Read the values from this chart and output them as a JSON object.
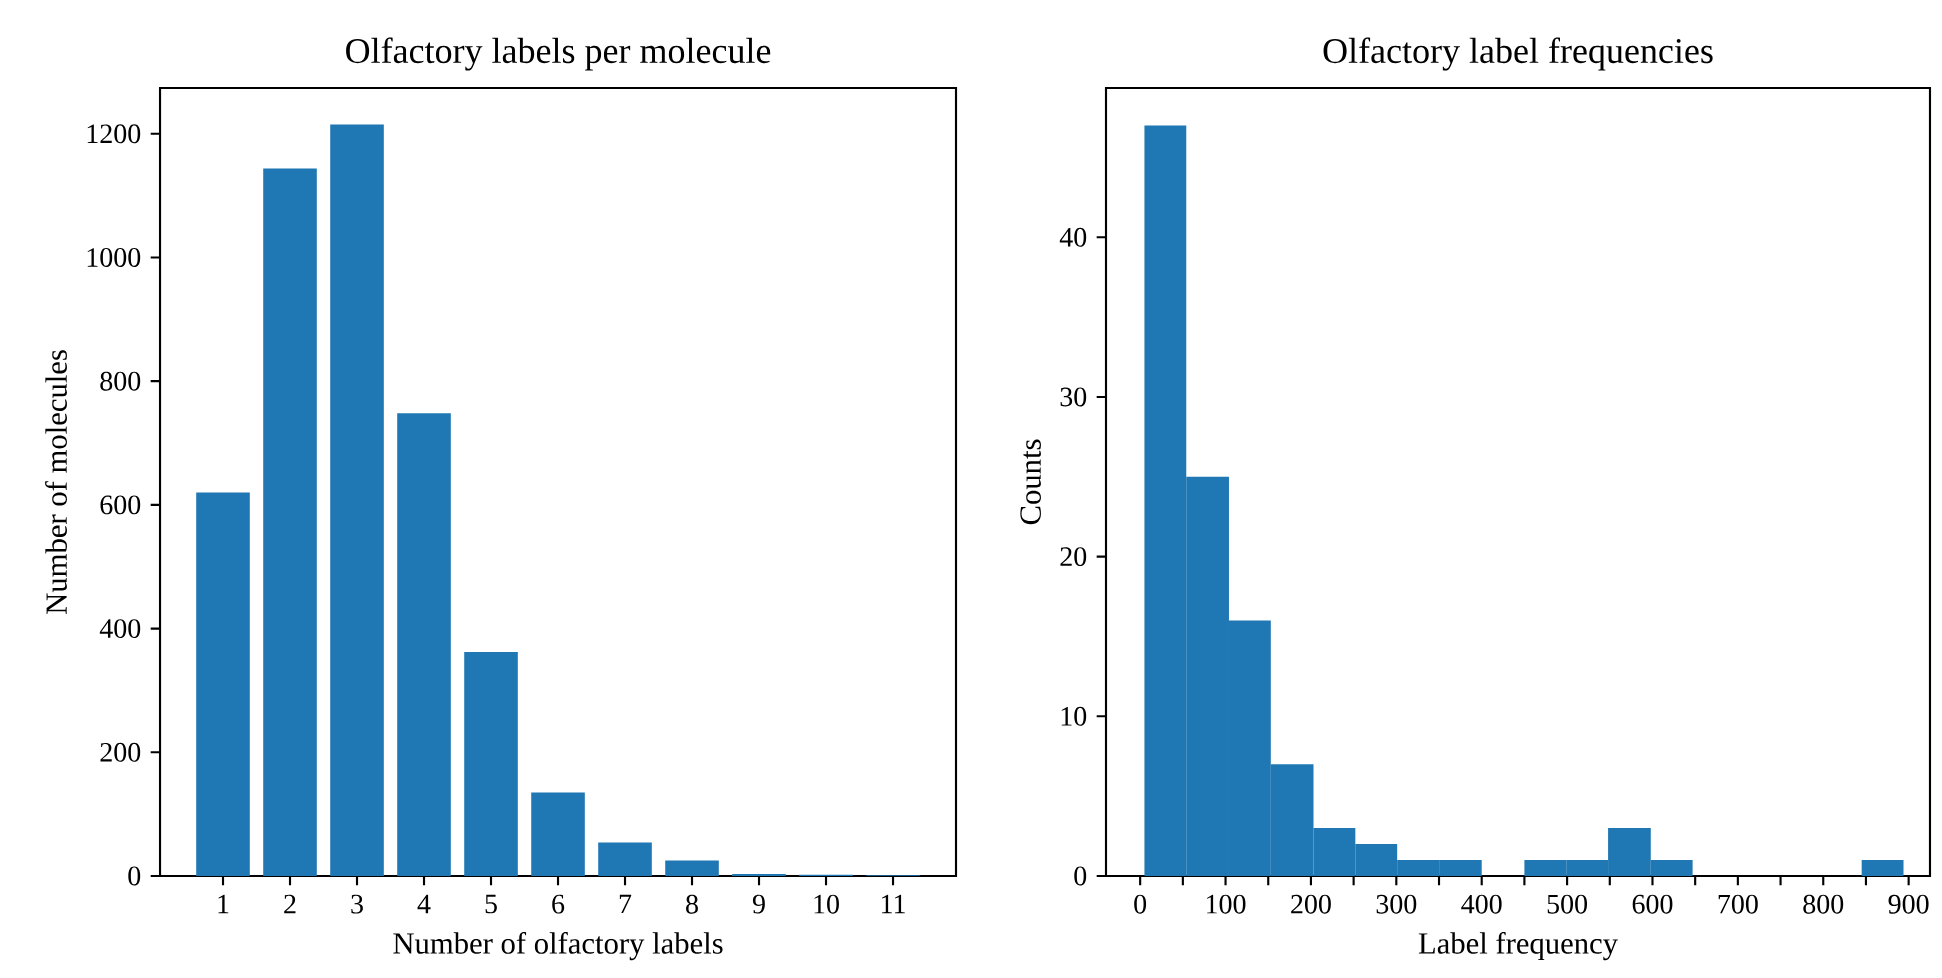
{
  "chart_data": [
    {
      "type": "bar",
      "title": "Olfactory labels per molecule",
      "xlabel": "Number of olfactory labels",
      "ylabel": "Number of molecules",
      "categories": [
        "1",
        "2",
        "3",
        "4",
        "5",
        "6",
        "7",
        "8",
        "9",
        "10",
        "11"
      ],
      "values": [
        620,
        1144,
        1215,
        748,
        362,
        135,
        54,
        25,
        3,
        2,
        1
      ],
      "color": "#1f77b4",
      "ylim": [
        0,
        1274
      ],
      "yticks": [
        0,
        200,
        400,
        600,
        800,
        1000,
        1200
      ]
    },
    {
      "type": "histogram",
      "title": "Olfactory label frequencies",
      "xlabel": "Label frequency",
      "ylabel": "Counts",
      "bins": [
        5,
        54,
        104,
        153,
        203,
        252,
        301,
        351,
        400,
        450,
        499,
        548,
        598,
        647,
        845,
        894
      ],
      "values": [
        47,
        25,
        16,
        7,
        3,
        2,
        1,
        1,
        0,
        1,
        1,
        3,
        1,
        0,
        1
      ],
      "color": "#1f77b4",
      "xlim": [
        -40,
        925
      ],
      "ylim": [
        0,
        49.35
      ],
      "xticks": [
        0,
        {
          "value": 50,
          "label": null
        },
        100,
        {
          "value": 150,
          "label": null
        },
        200,
        {
          "value": 250,
          "label": null
        },
        300,
        {
          "value": 350,
          "label": null
        },
        400,
        {
          "value": 450,
          "label": null
        },
        500,
        {
          "value": 550,
          "label": null
        },
        600,
        {
          "value": 650,
          "label": null
        },
        700,
        {
          "value": 750,
          "label": null
        },
        800,
        {
          "value": 850,
          "label": null
        },
        900
      ],
      "yticks": [
        0,
        10,
        20,
        30,
        40
      ]
    }
  ]
}
